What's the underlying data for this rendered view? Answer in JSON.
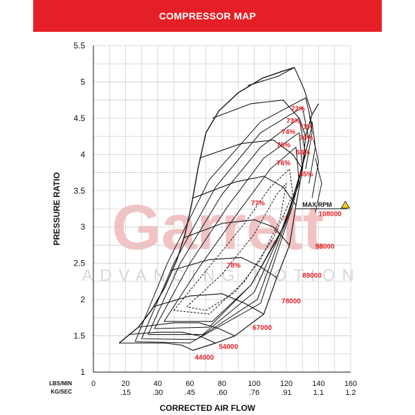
{
  "header": {
    "title": "COMPRESSOR MAP"
  },
  "watermark": {
    "brand": "Garrett",
    "tagline": "ADVANCING MOTION"
  },
  "colors": {
    "header_bg": "#e42026",
    "label_red": "#e42026",
    "grid": "#cfcfcf",
    "line": "#111111"
  },
  "chart_data": {
    "type": "line",
    "title": "COMPRESSOR MAP",
    "xlabel": "CORRECTED AIR FLOW",
    "ylabel": "PRESSURE RATIO",
    "xlim": [
      0,
      160
    ],
    "ylim": [
      1,
      5.5
    ],
    "grid": true,
    "x_ticks_lbs": [
      "0",
      "20",
      "40",
      "60",
      "80",
      "100",
      "120",
      "140",
      "160"
    ],
    "x_ticks_kg": [
      ".15",
      ".30",
      ".45",
      ".60",
      ".76",
      ".91",
      "1.1",
      "1.2"
    ],
    "x_unit_labels": [
      "LBS/MIN",
      "KG/SEC"
    ],
    "y_ticks": [
      "1",
      "1.5",
      "2",
      "2.5",
      "3",
      "3.5",
      "4",
      "4.5",
      "5",
      "5.5"
    ],
    "max_rpm_label": "MAX RPM",
    "surge_line": [
      [
        16,
        1.4
      ],
      [
        28,
        1.62
      ],
      [
        36,
        1.85
      ],
      [
        44,
        2.15
      ],
      [
        52,
        2.55
      ],
      [
        57,
        2.9
      ],
      [
        61,
        3.3
      ],
      [
        65,
        3.8
      ],
      [
        70,
        4.3
      ],
      [
        78,
        4.6
      ],
      [
        90,
        4.85
      ],
      [
        105,
        5.05
      ],
      [
        118,
        5.15
      ],
      [
        125,
        5.2
      ]
    ],
    "speed_lines": [
      {
        "label": "44000",
        "points": [
          [
            16,
            1.4
          ],
          [
            30,
            1.4
          ],
          [
            45,
            1.4
          ],
          [
            55,
            1.37
          ],
          [
            62,
            1.3
          ]
        ]
      },
      {
        "label": "54000",
        "points": [
          [
            22,
            1.52
          ],
          [
            40,
            1.55
          ],
          [
            55,
            1.55
          ],
          [
            66,
            1.5
          ],
          [
            76,
            1.4
          ]
        ]
      },
      {
        "label": "67000",
        "points": [
          [
            28,
            1.62
          ],
          [
            50,
            1.68
          ],
          [
            66,
            1.68
          ],
          [
            78,
            1.6
          ],
          [
            88,
            1.5
          ]
        ]
      },
      {
        "label": "78000",
        "points": [
          [
            37,
            1.9
          ],
          [
            60,
            2.05
          ],
          [
            80,
            2.08
          ],
          [
            94,
            1.95
          ],
          [
            106,
            1.8
          ]
        ]
      },
      {
        "label": "89000",
        "points": [
          [
            48,
            2.4
          ],
          [
            72,
            2.55
          ],
          [
            92,
            2.58
          ],
          [
            104,
            2.45
          ],
          [
            114,
            2.3
          ]
        ]
      },
      {
        "label": "98000",
        "points": [
          [
            56,
            2.85
          ],
          [
            80,
            3.05
          ],
          [
            100,
            3.1
          ],
          [
            112,
            3.0
          ],
          [
            122,
            2.75
          ]
        ]
      },
      {
        "label": "108000",
        "points": [
          [
            62,
            3.4
          ],
          [
            88,
            3.62
          ],
          [
            106,
            3.7
          ],
          [
            118,
            3.55
          ],
          [
            126,
            3.3
          ]
        ]
      },
      {
        "label": "",
        "points": [
          [
            66,
            3.95
          ],
          [
            92,
            4.15
          ],
          [
            112,
            4.2
          ],
          [
            124,
            4.0
          ],
          [
            130,
            3.8
          ]
        ]
      },
      {
        "label": "",
        "points": [
          [
            74,
            4.5
          ],
          [
            98,
            4.7
          ],
          [
            118,
            4.75
          ],
          [
            128,
            4.5
          ],
          [
            132,
            4.25
          ]
        ]
      },
      {
        "label": "",
        "points": [
          [
            96,
            4.95
          ],
          [
            115,
            5.08
          ],
          [
            125,
            5.2
          ],
          [
            131,
            4.9
          ],
          [
            136,
            4.55
          ]
        ]
      }
    ],
    "choke_line": [
      [
        62,
        1.3
      ],
      [
        76,
        1.4
      ],
      [
        88,
        1.5
      ],
      [
        106,
        1.8
      ],
      [
        114,
        2.3
      ],
      [
        122,
        2.75
      ],
      [
        126,
        3.3
      ],
      [
        130,
        3.8
      ],
      [
        132,
        4.25
      ],
      [
        136,
        4.55
      ],
      [
        140,
        4.7
      ]
    ],
    "efficiency_islands": [
      {
        "label": "78%",
        "points": [
          [
            58,
            1.9
          ],
          [
            80,
            2.35
          ],
          [
            100,
            2.9
          ],
          [
            114,
            3.45
          ],
          [
            120,
            3.6
          ],
          [
            116,
            3.1
          ],
          [
            104,
            2.55
          ],
          [
            88,
            2.1
          ],
          [
            70,
            1.85
          ],
          [
            58,
            1.9
          ]
        ]
      },
      {
        "label": "77%",
        "points": [
          [
            50,
            1.85
          ],
          [
            72,
            2.45
          ],
          [
            94,
            3.05
          ],
          [
            110,
            3.55
          ],
          [
            122,
            3.8
          ],
          [
            124,
            3.45
          ],
          [
            112,
            2.85
          ],
          [
            94,
            2.25
          ],
          [
            72,
            1.8
          ],
          [
            50,
            1.85
          ]
        ]
      },
      {
        "label": "76%",
        "points": [
          [
            44,
            1.7
          ],
          [
            66,
            2.45
          ],
          [
            90,
            3.2
          ],
          [
            110,
            3.8
          ],
          [
            126,
            4.1
          ],
          [
            128,
            3.6
          ],
          [
            116,
            2.9
          ],
          [
            98,
            2.2
          ],
          [
            74,
            1.7
          ],
          [
            44,
            1.7
          ]
        ]
      },
      {
        "label": "75%",
        "points": [
          [
            38,
            1.6
          ],
          [
            60,
            2.5
          ],
          [
            84,
            3.3
          ],
          [
            106,
            3.95
          ],
          [
            128,
            4.3
          ],
          [
            130,
            3.8
          ],
          [
            118,
            3.0
          ],
          [
            98,
            2.2
          ],
          [
            72,
            1.62
          ],
          [
            38,
            1.6
          ]
        ]
      },
      {
        "label": "74%",
        "points": [
          [
            34,
            1.52
          ],
          [
            54,
            2.5
          ],
          [
            80,
            3.45
          ],
          [
            104,
            4.1
          ],
          [
            128,
            4.5
          ],
          [
            132,
            4.0
          ],
          [
            120,
            3.1
          ],
          [
            100,
            2.1
          ],
          [
            68,
            1.52
          ],
          [
            34,
            1.52
          ]
        ]
      },
      {
        "label": "73%",
        "points": [
          [
            30,
            1.46
          ],
          [
            50,
            2.5
          ],
          [
            76,
            3.55
          ],
          [
            104,
            4.3
          ],
          [
            130,
            4.65
          ],
          [
            134,
            4.2
          ],
          [
            122,
            3.2
          ],
          [
            102,
            2.0
          ],
          [
            64,
            1.45
          ],
          [
            30,
            1.46
          ]
        ]
      },
      {
        "label": "72%",
        "points": [
          [
            26,
            1.42
          ],
          [
            46,
            2.5
          ],
          [
            72,
            3.65
          ],
          [
            104,
            4.45
          ],
          [
            132,
            4.78
          ],
          [
            136,
            4.4
          ],
          [
            124,
            3.3
          ],
          [
            104,
            1.95
          ],
          [
            60,
            1.4
          ],
          [
            26,
            1.42
          ]
        ]
      },
      {
        "label": "71%",
        "points": [
          [
            134,
            4.6
          ],
          [
            136,
            4.3
          ],
          [
            132,
            3.8
          ]
        ]
      },
      {
        "label": "70%",
        "points": [
          [
            136,
            4.45
          ],
          [
            138,
            4.1
          ],
          [
            134,
            3.6
          ]
        ]
      },
      {
        "label": "68%",
        "points": [
          [
            137,
            4.2
          ],
          [
            140,
            3.9
          ],
          [
            136,
            3.4
          ]
        ]
      },
      {
        "label": "65%",
        "points": [
          [
            138,
            3.95
          ],
          [
            142,
            3.6
          ],
          [
            138,
            3.2
          ]
        ]
      }
    ],
    "efficiency_label_positions": [
      {
        "label": "72%",
        "x": 123,
        "y": 4.6
      },
      {
        "label": "73%",
        "x": 120,
        "y": 4.43
      },
      {
        "label": "74%",
        "x": 117,
        "y": 4.28
      },
      {
        "label": "75%",
        "x": 114,
        "y": 4.1
      },
      {
        "label": "76%",
        "x": 114,
        "y": 3.85
      },
      {
        "label": "77%",
        "x": 98,
        "y": 3.3
      },
      {
        "label": "78%",
        "x": 83,
        "y": 2.44
      },
      {
        "label": "71%",
        "x": 128,
        "y": 4.35
      },
      {
        "label": "70%",
        "x": 128,
        "y": 4.2
      },
      {
        "label": "68%",
        "x": 126,
        "y": 4.0
      },
      {
        "label": "65%",
        "x": 128,
        "y": 3.7
      }
    ],
    "rpm_label_positions": [
      {
        "label": "108000",
        "x": 140,
        "y": 3.15
      },
      {
        "label": "98000",
        "x": 138,
        "y": 2.7
      },
      {
        "label": "89000",
        "x": 130,
        "y": 2.3
      },
      {
        "label": "78000",
        "x": 117,
        "y": 1.95
      },
      {
        "label": "67000",
        "x": 99,
        "y": 1.58
      },
      {
        "label": "54000",
        "x": 78,
        "y": 1.32
      },
      {
        "label": "44000",
        "x": 63,
        "y": 1.17
      }
    ]
  }
}
